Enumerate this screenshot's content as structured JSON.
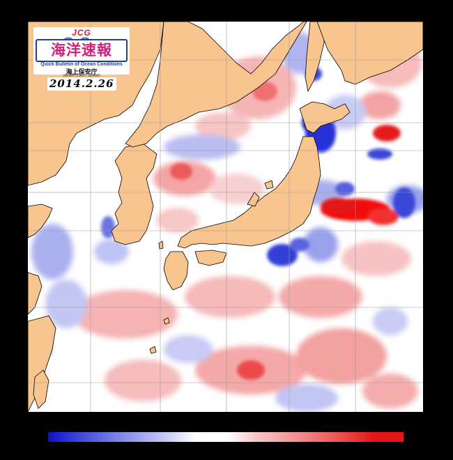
{
  "logo": {
    "brand": "JCG",
    "title": "海洋速報",
    "subtitle": "Quick Bulletin of Ocean Conditions",
    "agency": "海上保安庁",
    "agency_en": "JAPAN COAST GUARD"
  },
  "map": {
    "date": "2014.2.26",
    "colors": {
      "land": "#f9c58e",
      "sea_neutral": "#ffffff",
      "grid": "#9a9a9a",
      "deep_blue": "#1a27d8",
      "deep_red": "#f01010"
    }
  },
  "colorbar": {
    "colors": [
      "#0b12c8",
      "#3b46d9",
      "#6a74e2",
      "#9aa1ec",
      "#c7cbf5",
      "#ffffff",
      "#ffffff",
      "#f7c8c8",
      "#f2a0a0",
      "#ef7676",
      "#ec4a4a",
      "#e41616"
    ]
  }
}
